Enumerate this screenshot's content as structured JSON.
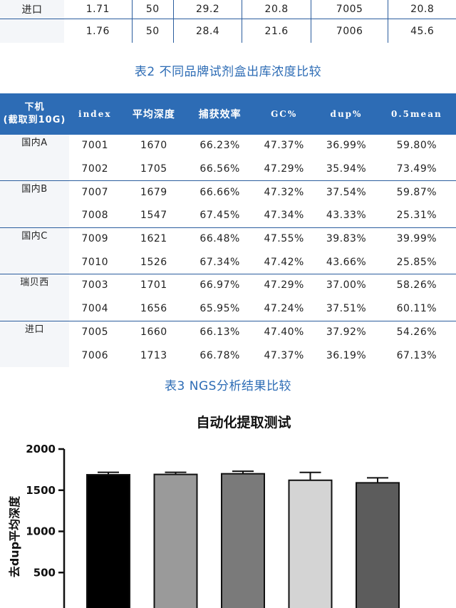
{
  "table1_partial": {
    "rows": [
      {
        "label": "进口",
        "cells": [
          "1.71",
          "50",
          "29.2",
          "20.8",
          "7005",
          "20.8"
        ]
      },
      {
        "label": "",
        "cells": [
          "1.76",
          "50",
          "28.4",
          "21.6",
          "7006",
          "45.6"
        ]
      }
    ]
  },
  "caption2": "表2 不同品牌试剂盒出库浓度比较",
  "table2": {
    "headers": {
      "h0_line1": "下机",
      "h0_line2": "(截取到10G)",
      "h1": "index",
      "h2": "平均深度",
      "h3": "捕获效率",
      "h4": "GC%",
      "h5": "dup%",
      "h6": "0.5mean"
    },
    "groups": [
      {
        "name": "国内A",
        "rows": [
          [
            "7001",
            "1670",
            "66.23%",
            "47.37%",
            "36.99%",
            "59.80%"
          ],
          [
            "7002",
            "1705",
            "66.56%",
            "47.29%",
            "35.94%",
            "73.49%"
          ]
        ]
      },
      {
        "name": "国内B",
        "rows": [
          [
            "7007",
            "1679",
            "66.66%",
            "47.32%",
            "37.54%",
            "59.87%"
          ],
          [
            "7008",
            "1547",
            "67.45%",
            "47.34%",
            "43.33%",
            "25.31%"
          ]
        ]
      },
      {
        "name": "国内C",
        "rows": [
          [
            "7009",
            "1621",
            "66.48%",
            "47.55%",
            "39.83%",
            "39.99%"
          ],
          [
            "7010",
            "1526",
            "67.34%",
            "47.42%",
            "43.66%",
            "25.85%"
          ]
        ]
      },
      {
        "name": "瑞贝西",
        "rows": [
          [
            "7003",
            "1701",
            "66.97%",
            "47.29%",
            "37.00%",
            "58.26%"
          ],
          [
            "7004",
            "1656",
            "65.95%",
            "47.24%",
            "37.51%",
            "60.11%"
          ]
        ]
      },
      {
        "name": "进口",
        "rows": [
          [
            "7005",
            "1660",
            "66.13%",
            "47.40%",
            "37.92%",
            "54.26%"
          ],
          [
            "7006",
            "1713",
            "66.78%",
            "47.37%",
            "36.19%",
            "67.13%"
          ]
        ]
      }
    ]
  },
  "caption3": "表3 NGS分析结果比较",
  "chart_data": {
    "type": "bar",
    "title": "自动化提取测试",
    "ylabel": "去dup平均深度",
    "ylim": [
      0,
      2000
    ],
    "yticks": [
      "500",
      "1000",
      "1500",
      "2000"
    ],
    "values": [
      1688,
      1692,
      1700,
      1621,
      1590
    ],
    "errors": [
      30,
      25,
      30,
      95,
      60
    ],
    "colors": [
      "#000000",
      "#9a9a9a",
      "#7a7a7a",
      "#d4d4d4",
      "#5c5c5c"
    ]
  }
}
